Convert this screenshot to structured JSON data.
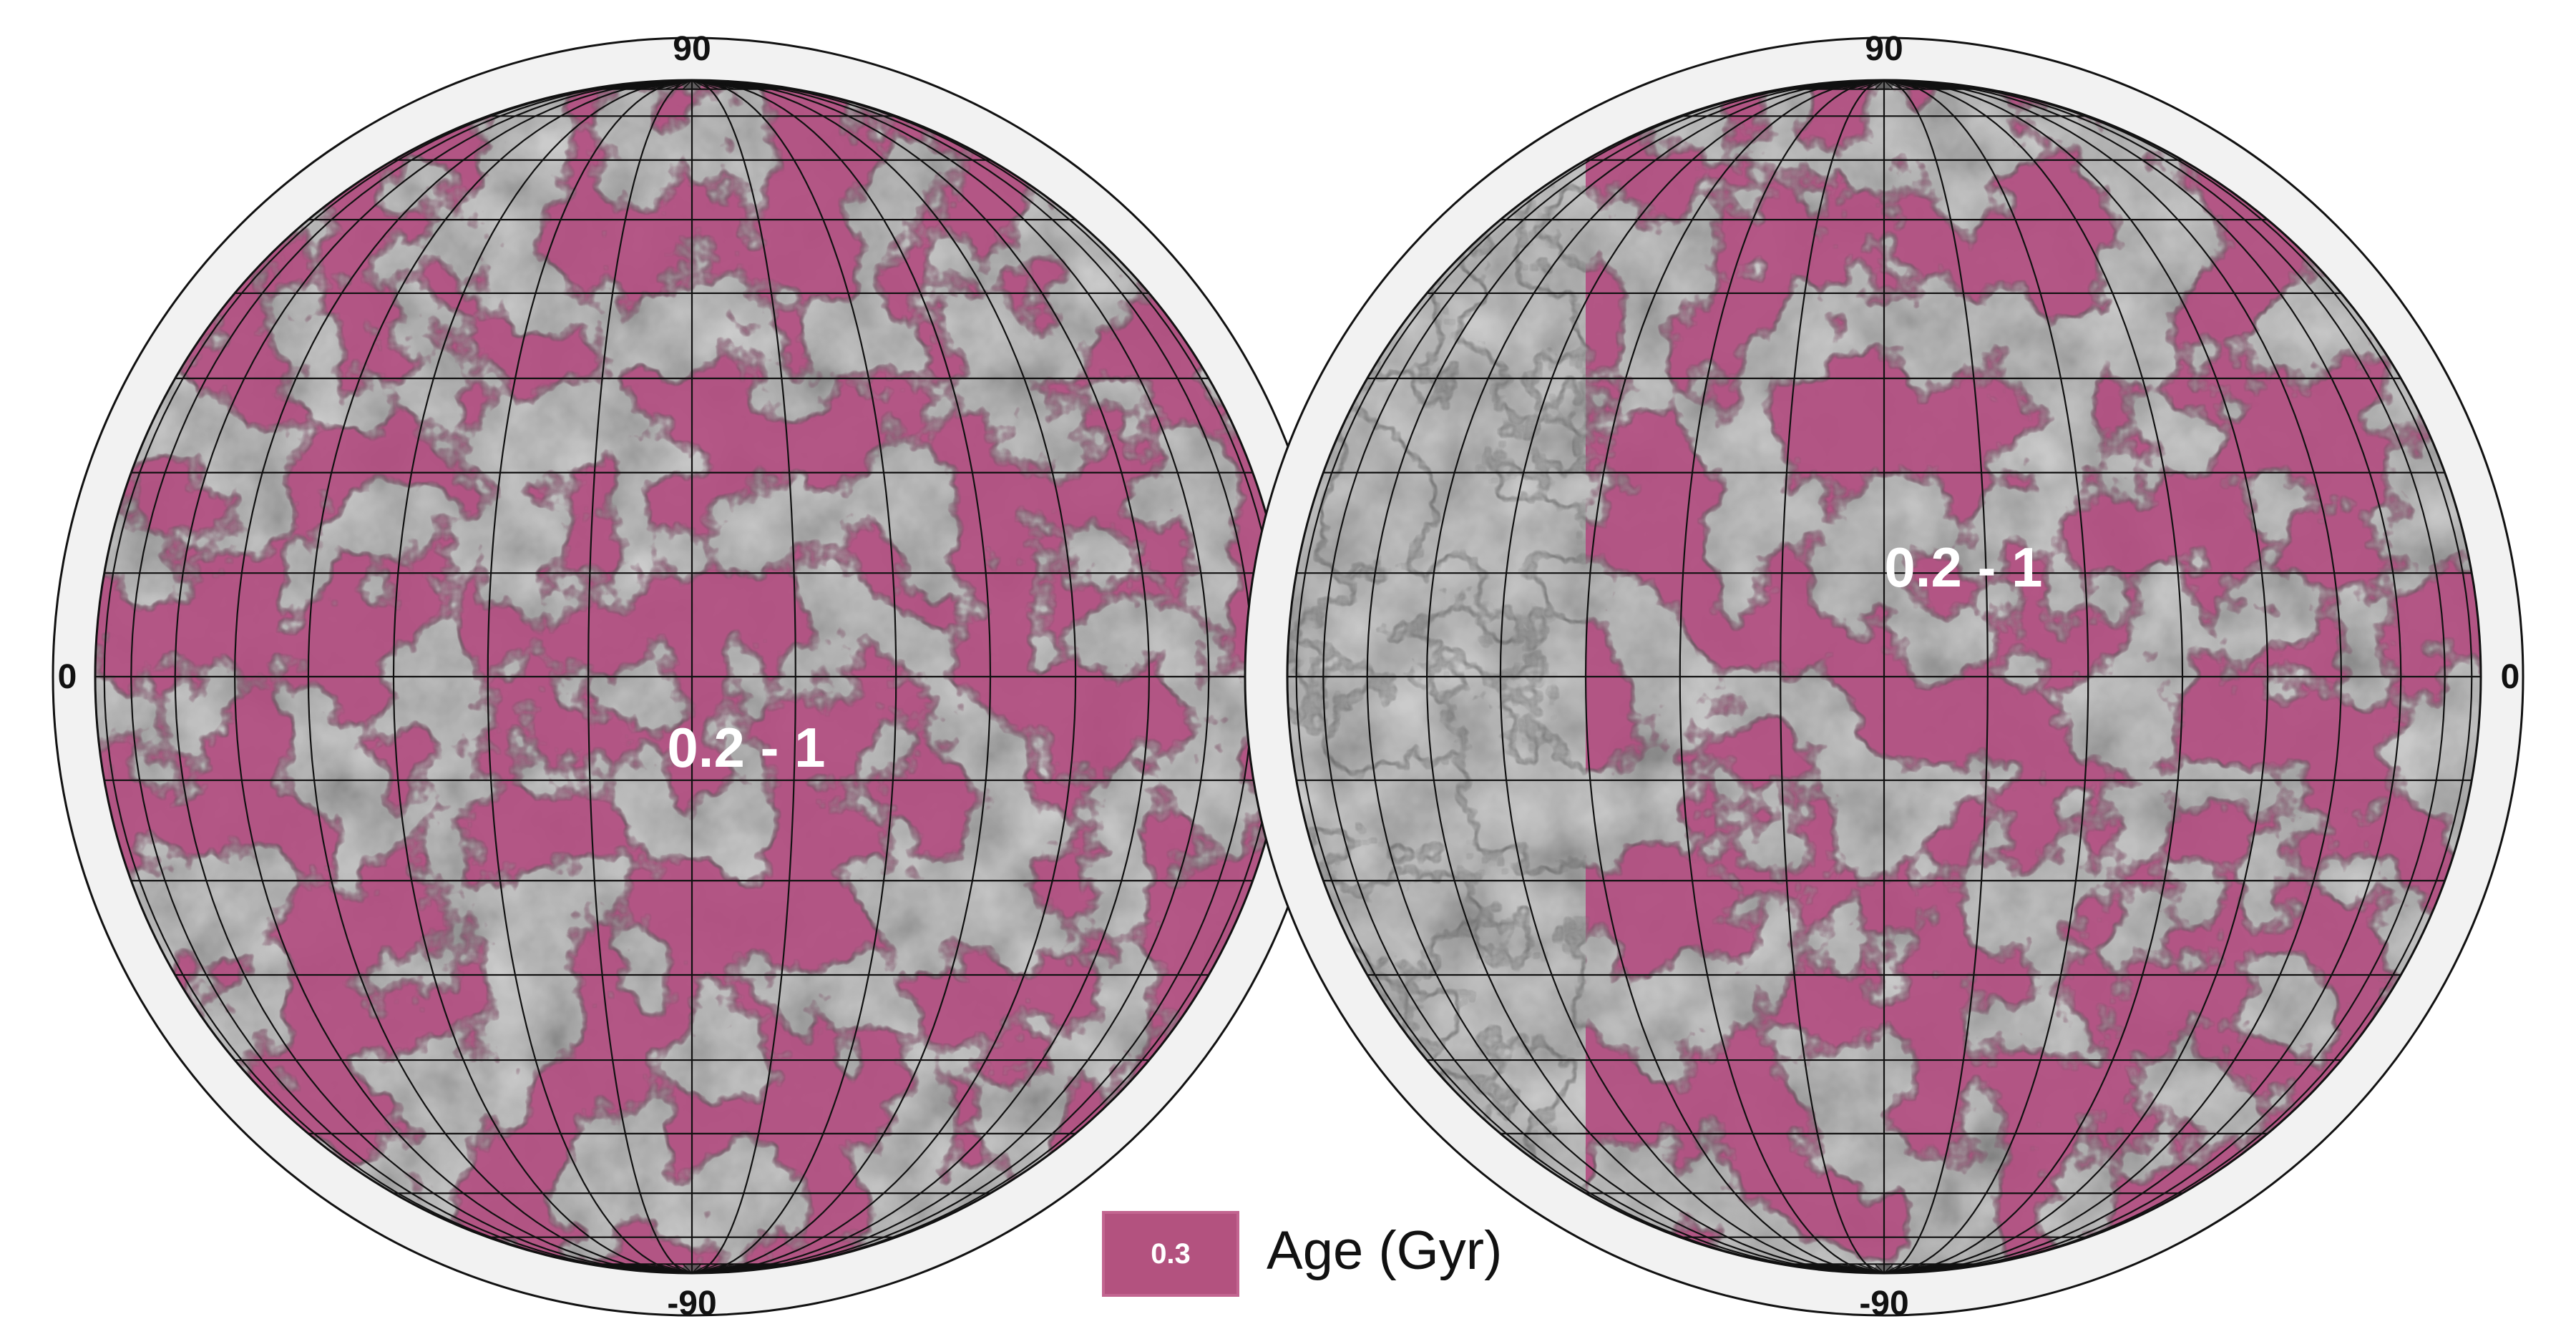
{
  "map": {
    "hemispheres": [
      {
        "top_label": "90",
        "bottom_label": "-90",
        "side_label": "0",
        "side": "left",
        "region_label": "0.2 - 1"
      },
      {
        "top_label": "90",
        "bottom_label": "-90",
        "side_label": "0",
        "side": "right",
        "region_label": "0.2 - 1"
      }
    ],
    "legend": {
      "swatch_label": "0.3",
      "title": "Age (Gyr)"
    },
    "colors": {
      "unit_fill": "#b24d80",
      "terrain_base": "#8c8c8c",
      "unit_outline": "#1a1a1a",
      "frame_ring": "#f2f2f2",
      "graticule": "#111111",
      "swatch_fill": "#b3527f",
      "swatch_border": "#c26590"
    }
  }
}
